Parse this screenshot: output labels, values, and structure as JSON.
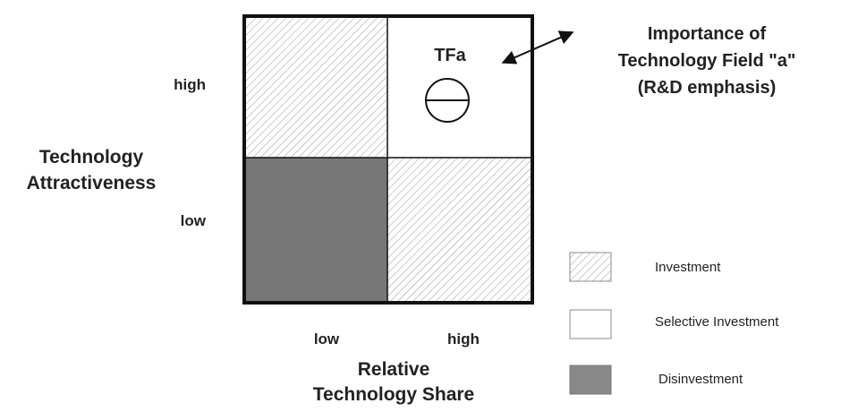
{
  "y_axis": {
    "title_lines": [
      "Technology",
      "Attractiveness"
    ],
    "high": "high",
    "low": "low"
  },
  "x_axis": {
    "title_lines": [
      "Relative",
      "Technology Share"
    ],
    "low": "low",
    "high": "high"
  },
  "field": {
    "label": "TFa"
  },
  "annotation": {
    "lines": [
      "Importance of",
      "Technology Field \"a\"",
      "(R&D emphasis)"
    ]
  },
  "legend": [
    {
      "label": "Investment"
    },
    {
      "label": "Selective Investment"
    },
    {
      "label": "Disinvestment"
    }
  ]
}
